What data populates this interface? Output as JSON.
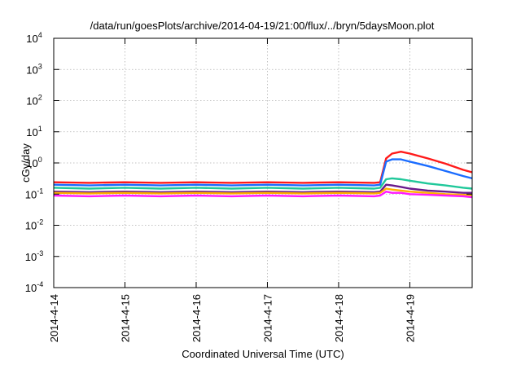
{
  "chart_data": {
    "type": "line",
    "title": "/data/run/goesPlots/archive/2014-04-19/21:00/flux/../bryn/5daysMoon.plot",
    "xlabel": "Coordinated Universal Time (UTC)",
    "ylabel": "cGy/day",
    "y_scale": "log",
    "ylim": [
      0.0001,
      10000
    ],
    "xlim": [
      "2014-04-14 00:00",
      "2014-04-19 21:00"
    ],
    "x_tick_labels": [
      "2014-4-14",
      "2014-4-15",
      "2014-4-16",
      "2014-4-17",
      "2014-4-18",
      "2014-4-19"
    ],
    "y_tick_labels": [
      {
        "base": "10",
        "exp": "-4"
      },
      {
        "base": "10",
        "exp": "-3"
      },
      {
        "base": "10",
        "exp": "-2"
      },
      {
        "base": "10",
        "exp": "-1"
      },
      {
        "base": "10",
        "exp": "0"
      },
      {
        "base": "10",
        "exp": "1"
      },
      {
        "base": "10",
        "exp": "2"
      },
      {
        "base": "10",
        "exp": "3"
      },
      {
        "base": "10",
        "exp": "4"
      }
    ],
    "grid": true,
    "x": [
      "2014-04-14 00:00",
      "2014-04-14 12:00",
      "2014-04-15 00:00",
      "2014-04-15 12:00",
      "2014-04-16 00:00",
      "2014-04-16 12:00",
      "2014-04-17 00:00",
      "2014-04-17 12:00",
      "2014-04-18 00:00",
      "2014-04-18 12:00",
      "2014-04-18 14:00",
      "2014-04-18 16:00",
      "2014-04-18 18:00",
      "2014-04-18 21:00",
      "2014-04-19 00:00",
      "2014-04-19 06:00",
      "2014-04-19 12:00",
      "2014-04-19 18:00",
      "2014-04-19 21:00"
    ],
    "series": [
      {
        "color": "#ff1a1a",
        "values": [
          0.24,
          0.23,
          0.24,
          0.23,
          0.24,
          0.23,
          0.24,
          0.23,
          0.24,
          0.23,
          0.24,
          1.4,
          2.0,
          2.3,
          2.0,
          1.4,
          0.95,
          0.6,
          0.5
        ]
      },
      {
        "color": "#1a6cff",
        "values": [
          0.2,
          0.19,
          0.2,
          0.19,
          0.2,
          0.19,
          0.2,
          0.19,
          0.2,
          0.19,
          0.2,
          1.1,
          1.3,
          1.3,
          1.1,
          0.8,
          0.55,
          0.38,
          0.32
        ]
      },
      {
        "color": "#20c89a",
        "values": [
          0.16,
          0.15,
          0.16,
          0.15,
          0.16,
          0.15,
          0.16,
          0.15,
          0.16,
          0.15,
          0.16,
          0.3,
          0.32,
          0.3,
          0.27,
          0.22,
          0.19,
          0.16,
          0.15
        ]
      },
      {
        "color": "#6a1a8c",
        "values": [
          0.12,
          0.115,
          0.12,
          0.115,
          0.12,
          0.115,
          0.12,
          0.115,
          0.12,
          0.115,
          0.12,
          0.2,
          0.19,
          0.17,
          0.15,
          0.13,
          0.12,
          0.11,
          0.11
        ]
      },
      {
        "color": "#ffb000",
        "values": [
          0.11,
          0.105,
          0.11,
          0.105,
          0.11,
          0.105,
          0.11,
          0.105,
          0.11,
          0.105,
          0.11,
          0.15,
          0.14,
          0.13,
          0.12,
          0.11,
          0.1,
          0.095,
          0.09
        ]
      },
      {
        "color": "#ff1aff",
        "values": [
          0.09,
          0.085,
          0.09,
          0.085,
          0.09,
          0.085,
          0.09,
          0.085,
          0.09,
          0.085,
          0.09,
          0.12,
          0.11,
          0.11,
          0.1,
          0.095,
          0.09,
          0.085,
          0.08
        ]
      }
    ]
  }
}
